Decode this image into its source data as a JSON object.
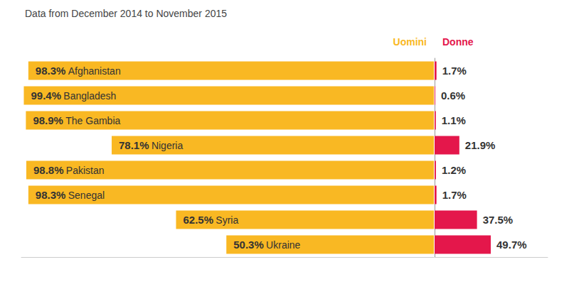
{
  "chart_data": {
    "type": "bar",
    "orientation": "horizontal",
    "subtitle": "Data from December 2014 to November 2015",
    "categories": [
      "Afghanistan",
      "Bangladesh",
      "The Gambia",
      "Nigeria",
      "Pakistan",
      "Senegal",
      "Syria",
      "Ukraine"
    ],
    "series": [
      {
        "name": "Uomini",
        "color": "#f9b823",
        "values": [
          98.3,
          99.4,
          98.9,
          78.1,
          98.8,
          98.3,
          62.5,
          50.3
        ],
        "value_labels": [
          "98.3%",
          "99.4%",
          "98.9%",
          "78.1%",
          "98.8%",
          "98.3%",
          "62.5%",
          "50.3%"
        ]
      },
      {
        "name": "Donne",
        "color": "#e4174b",
        "values": [
          1.7,
          0.6,
          1.1,
          21.9,
          1.2,
          1.7,
          37.5,
          49.7
        ],
        "value_labels": [
          "1.7%",
          "0.6%",
          "1.1%",
          "21.9%",
          "1.2%",
          "1.7%",
          "37.5%",
          "49.7%"
        ]
      }
    ],
    "xlim": [
      0,
      100
    ],
    "tick_labels": false,
    "grid": false,
    "data_labels": true
  }
}
